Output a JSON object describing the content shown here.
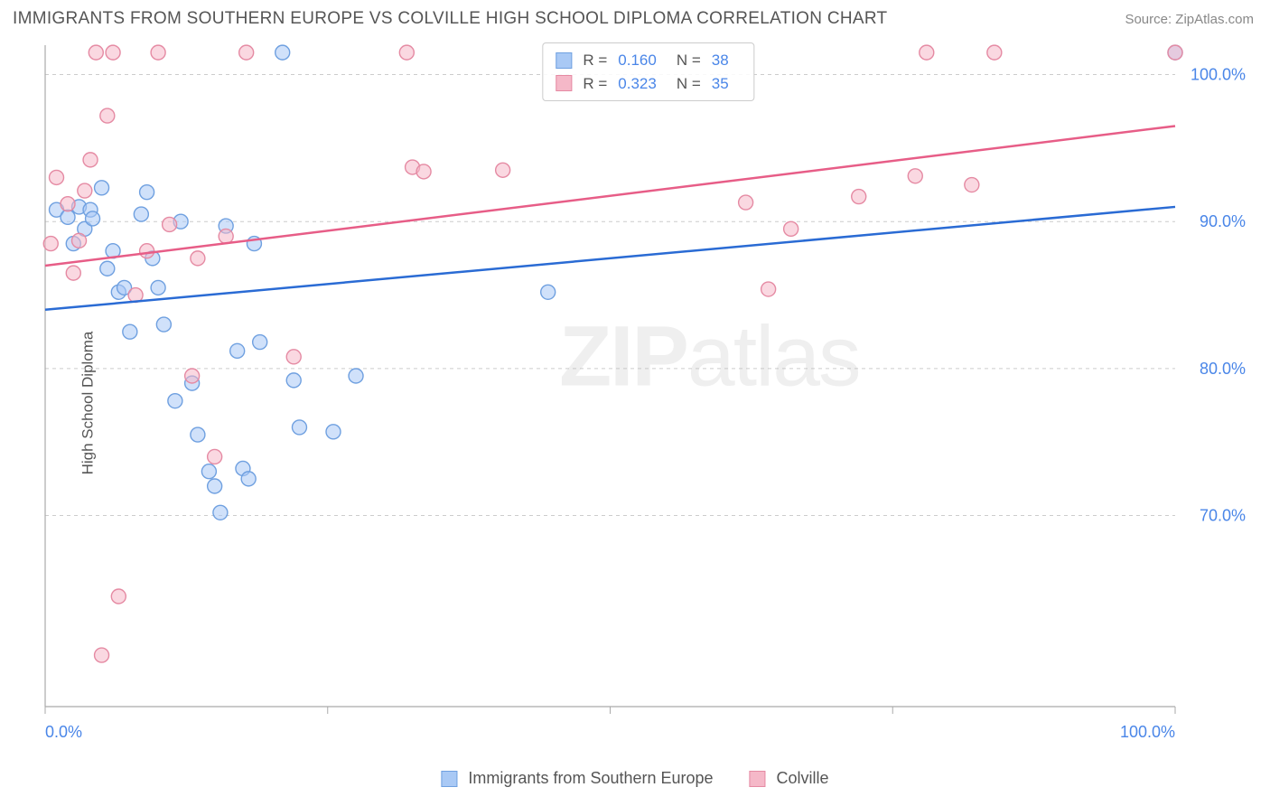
{
  "header": {
    "title": "IMMIGRANTS FROM SOUTHERN EUROPE VS COLVILLE HIGH SCHOOL DIPLOMA CORRELATION CHART",
    "source": "Source: ZipAtlas.com"
  },
  "y_axis_label": "High School Diploma",
  "watermark_a": "ZIP",
  "watermark_b": "atlas",
  "chart": {
    "type": "scatter",
    "background_color": "#ffffff",
    "plot_border_color": "#aaaaaa",
    "grid_color": "#cccccc",
    "xlim": [
      0,
      100
    ],
    "ylim": [
      57,
      102
    ],
    "y_ticks": [
      {
        "v": 70,
        "label": "70.0%"
      },
      {
        "v": 80,
        "label": "80.0%"
      },
      {
        "v": 90,
        "label": "90.0%"
      },
      {
        "v": 100,
        "label": "100.0%"
      }
    ],
    "x_ticks": [
      0,
      25,
      50,
      75,
      100
    ],
    "x_tick_labels": {
      "start": "0.0%",
      "end": "100.0%"
    },
    "marker_radius": 8,
    "marker_opacity": 0.55,
    "line_width": 2.5,
    "series": [
      {
        "name": "Immigrants from Southern Europe",
        "color_fill": "#a9c9f5",
        "color_stroke": "#6fa0e0",
        "line_color": "#2a6bd4",
        "R": "0.160",
        "N": "38",
        "trend": {
          "x1": 0,
          "y1": 84.0,
          "x2": 100,
          "y2": 91.0
        },
        "points": [
          [
            1,
            90.8
          ],
          [
            2,
            90.3
          ],
          [
            2.5,
            88.5
          ],
          [
            3,
            91
          ],
          [
            3.5,
            89.5
          ],
          [
            4,
            90.8
          ],
          [
            4.2,
            90.2
          ],
          [
            5,
            92.3
          ],
          [
            5.5,
            86.8
          ],
          [
            6,
            88
          ],
          [
            6.5,
            85.2
          ],
          [
            7,
            85.5
          ],
          [
            7.5,
            82.5
          ],
          [
            8.5,
            90.5
          ],
          [
            9,
            92
          ],
          [
            9.5,
            87.5
          ],
          [
            10,
            85.5
          ],
          [
            10.5,
            83
          ],
          [
            11.5,
            77.8
          ],
          [
            12,
            90
          ],
          [
            13,
            79
          ],
          [
            13.5,
            75.5
          ],
          [
            14.5,
            73
          ],
          [
            15,
            72
          ],
          [
            15.5,
            70.2
          ],
          [
            16,
            89.7
          ],
          [
            17,
            81.2
          ],
          [
            17.5,
            73.2
          ],
          [
            18,
            72.5
          ],
          [
            18.5,
            88.5
          ],
          [
            19,
            81.8
          ],
          [
            21,
            101.5
          ],
          [
            22,
            79.2
          ],
          [
            22.5,
            76
          ],
          [
            25.5,
            75.7
          ],
          [
            27.5,
            79.5
          ],
          [
            44.5,
            85.2
          ],
          [
            100,
            101.5
          ]
        ]
      },
      {
        "name": "Colville",
        "color_fill": "#f5b8c8",
        "color_stroke": "#e58aa3",
        "line_color": "#e75d87",
        "R": "0.323",
        "N": "35",
        "trend": {
          "x1": 0,
          "y1": 87.0,
          "x2": 100,
          "y2": 96.5
        },
        "points": [
          [
            0.5,
            88.5
          ],
          [
            1,
            93.0
          ],
          [
            2,
            91.2
          ],
          [
            2.5,
            86.5
          ],
          [
            3,
            88.7
          ],
          [
            3.5,
            92.1
          ],
          [
            4,
            94.2
          ],
          [
            4.5,
            101.5
          ],
          [
            5,
            60.5
          ],
          [
            5.5,
            97.2
          ],
          [
            6,
            101.5
          ],
          [
            6.5,
            64.5
          ],
          [
            8,
            85
          ],
          [
            9,
            88
          ],
          [
            10,
            101.5
          ],
          [
            11,
            89.8
          ],
          [
            13,
            79.5
          ],
          [
            13.5,
            87.5
          ],
          [
            15,
            74
          ],
          [
            16,
            89
          ],
          [
            17.8,
            101.5
          ],
          [
            22,
            80.8
          ],
          [
            32,
            101.5
          ],
          [
            32.5,
            93.7
          ],
          [
            33.5,
            93.4
          ],
          [
            40.5,
            93.5
          ],
          [
            62,
            91.3
          ],
          [
            64,
            85.4
          ],
          [
            66,
            89.5
          ],
          [
            72,
            91.7
          ],
          [
            77,
            93.1
          ],
          [
            78,
            101.5
          ],
          [
            82,
            92.5
          ],
          [
            84,
            101.5
          ],
          [
            100,
            101.5
          ]
        ]
      }
    ]
  },
  "legend_top": {
    "R_label": "R =",
    "N_label": "N ="
  },
  "legend_bottom": {
    "item1": "Immigrants from Southern Europe",
    "item2": "Colville"
  }
}
